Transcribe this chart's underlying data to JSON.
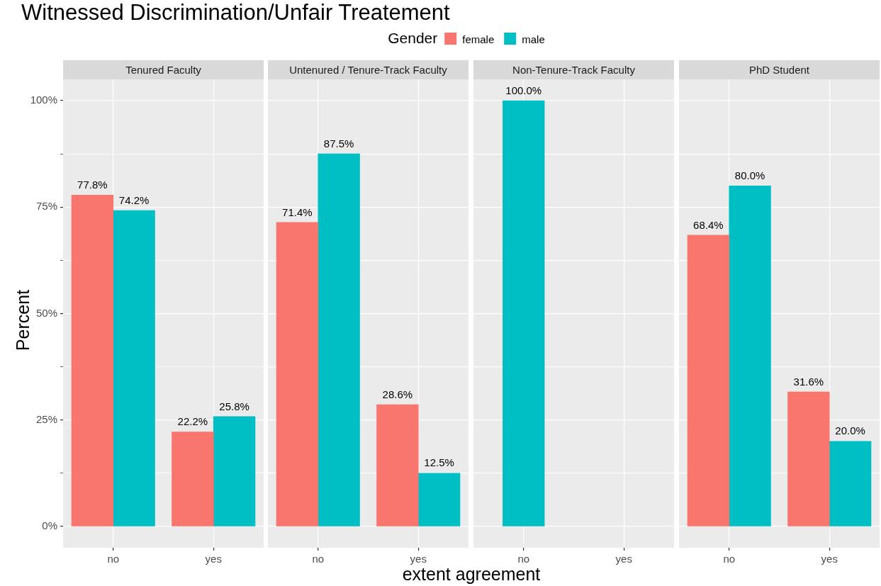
{
  "chart_data": [
    {
      "type": "bar",
      "title": "Witnessed Discrimination/Unfair Treatement",
      "subtitle": "Tenured Faculty",
      "ylabel": "Percent",
      "legend_title": "Gender",
      "legend": "top",
      "grid": true,
      "categories": [
        "no",
        "yes"
      ],
      "series": [
        {
          "name": "female",
          "color": "#f8766d",
          "values": [
            77.8,
            22.2
          ],
          "value_labels": [
            "77.8%",
            "22.2%"
          ]
        },
        {
          "name": "male",
          "color": "#00bfc4",
          "values": [
            74.2,
            25.8
          ],
          "value_labels": [
            "74.2%",
            "25.8%"
          ]
        }
      ],
      "ylim": [
        -5,
        105
      ],
      "yticks": [
        {
          "value": 0,
          "label": "0%"
        },
        {
          "value": 12.5,
          "label": null
        },
        {
          "value": 25,
          "label": "25%"
        },
        {
          "value": 37.5,
          "label": null
        },
        {
          "value": 50,
          "label": "50%"
        },
        {
          "value": 62.5,
          "label": null
        },
        {
          "value": 75,
          "label": "75%"
        },
        {
          "value": 87.5,
          "label": null
        },
        {
          "value": 100,
          "label": "100%"
        }
      ]
    },
    {
      "type": "bar",
      "subtitle": "Untenured / Tenure-Track Faculty",
      "xlabel": "extent agreement",
      "grid": true,
      "tick_labels": "x",
      "categories": [
        "no",
        "yes"
      ],
      "series": [
        {
          "color": "#f8766d",
          "values": [
            71.4,
            28.6
          ],
          "value_labels": [
            "71.4%",
            "28.6%"
          ]
        },
        {
          "color": "#00bfc4",
          "values": [
            87.5,
            12.5
          ],
          "value_labels": [
            "87.5%",
            "12.5%"
          ]
        }
      ],
      "ylim": [
        -5,
        105
      ],
      "yticks": [
        {
          "value": 0,
          "label": null
        },
        {
          "value": 12.5,
          "label": null
        },
        {
          "value": 25,
          "label": null
        },
        {
          "value": 37.5,
          "label": null
        },
        {
          "value": 50,
          "label": null
        },
        {
          "value": 62.5,
          "label": null
        },
        {
          "value": 75,
          "label": null
        },
        {
          "value": 87.5,
          "label": null
        },
        {
          "value": 100,
          "label": null
        }
      ]
    },
    {
      "type": "bar",
      "subtitle": "Non-Tenure-Track Faculty",
      "grid": true,
      "tick_labels": "x",
      "categories": [
        "no",
        "yes"
      ],
      "series": [
        {
          "color": "#00bfc4",
          "values": [
            100.0,
            null
          ],
          "value_labels": [
            "100.0%",
            null
          ]
        }
      ],
      "ylim": [
        -5,
        105
      ],
      "yticks": [
        {
          "value": 0,
          "label": null
        },
        {
          "value": 12.5,
          "label": null
        },
        {
          "value": 25,
          "label": null
        },
        {
          "value": 37.5,
          "label": null
        },
        {
          "value": 50,
          "label": null
        },
        {
          "value": 62.5,
          "label": null
        },
        {
          "value": 75,
          "label": null
        },
        {
          "value": 87.5,
          "label": null
        },
        {
          "value": 100,
          "label": null
        }
      ]
    },
    {
      "type": "bar",
      "subtitle": "PhD Student",
      "grid": true,
      "tick_labels": "x",
      "categories": [
        "no",
        "yes"
      ],
      "series": [
        {
          "color": "#f8766d",
          "values": [
            68.4,
            31.6
          ],
          "value_labels": [
            "68.4%",
            "31.6%"
          ]
        },
        {
          "color": "#00bfc4",
          "values": [
            80.0,
            20.0
          ],
          "value_labels": [
            "80.0%",
            "20.0%"
          ]
        }
      ],
      "ylim": [
        -5,
        105
      ],
      "yticks": [
        {
          "value": 0,
          "label": null
        },
        {
          "value": 12.5,
          "label": null
        },
        {
          "value": 25,
          "label": null
        },
        {
          "value": 37.5,
          "label": null
        },
        {
          "value": 50,
          "label": null
        },
        {
          "value": 62.5,
          "label": null
        },
        {
          "value": 75,
          "label": null
        },
        {
          "value": 87.5,
          "label": null
        },
        {
          "value": 100,
          "label": null
        }
      ]
    }
  ]
}
